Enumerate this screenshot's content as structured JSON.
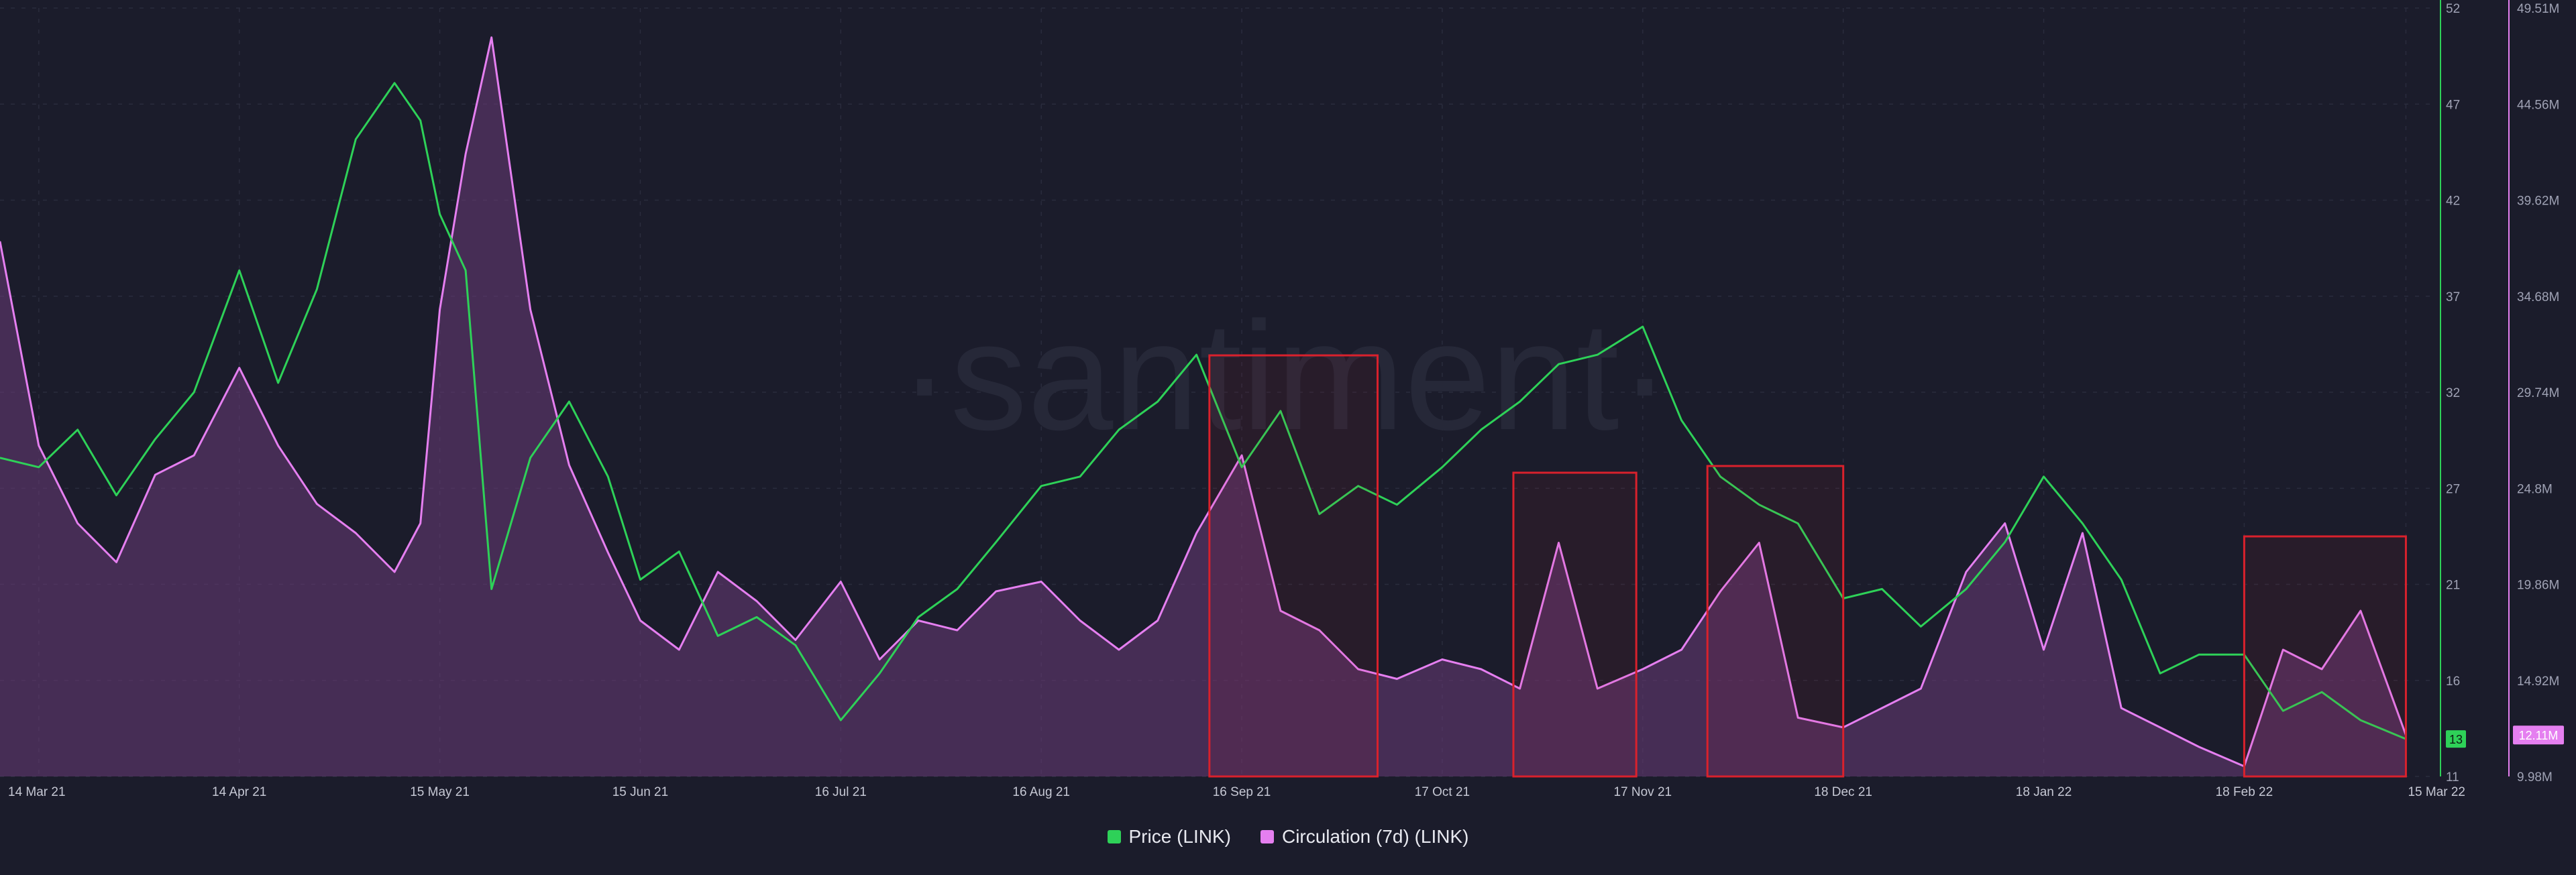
{
  "colors": {
    "background": "#1b1c2b",
    "price": "#2ed158",
    "circulation": "#e57ff0",
    "circulation_fill": "#6a3c78",
    "highlight_box": "#d9212c"
  },
  "watermark": "·santiment·",
  "chart_data": {
    "type": "line",
    "x_ticks": [
      "14 Mar 21",
      "14 Apr 21",
      "15 May 21",
      "15 Jun 21",
      "16 Jul 21",
      "16 Aug 21",
      "16 Sep 21",
      "17 Oct 21",
      "17 Nov 21",
      "18 Dec 21",
      "18 Jan 22",
      "18 Feb 22",
      "15 Mar 22"
    ],
    "y_left": {
      "ticks": [],
      "label": ""
    },
    "y_right_price": {
      "ticks": [
        "52",
        "47",
        "42",
        "37",
        "32",
        "27",
        "21",
        "16",
        "11"
      ],
      "range": [
        11,
        52
      ],
      "current_label": "13"
    },
    "y_right_circulation": {
      "ticks": [
        "49.51M",
        "44.56M",
        "39.62M",
        "34.68M",
        "29.74M",
        "24.8M",
        "19.86M",
        "14.92M",
        "9.98M"
      ],
      "range": [
        9.98,
        49.51
      ],
      "current_label": "12.11M"
    },
    "grid": true,
    "legend_position": "bottom-center",
    "x": [
      "2021-03-08",
      "2021-03-14",
      "2021-03-20",
      "2021-03-26",
      "2021-04-01",
      "2021-04-07",
      "2021-04-14",
      "2021-04-20",
      "2021-04-26",
      "2021-05-02",
      "2021-05-08",
      "2021-05-12",
      "2021-05-15",
      "2021-05-19",
      "2021-05-23",
      "2021-05-29",
      "2021-06-04",
      "2021-06-10",
      "2021-06-15",
      "2021-06-21",
      "2021-06-27",
      "2021-07-03",
      "2021-07-09",
      "2021-07-16",
      "2021-07-22",
      "2021-07-28",
      "2021-08-03",
      "2021-08-09",
      "2021-08-16",
      "2021-08-22",
      "2021-08-28",
      "2021-09-03",
      "2021-09-09",
      "2021-09-16",
      "2021-09-22",
      "2021-09-28",
      "2021-10-04",
      "2021-10-10",
      "2021-10-17",
      "2021-10-23",
      "2021-10-29",
      "2021-11-04",
      "2021-11-10",
      "2021-11-17",
      "2021-11-23",
      "2021-11-29",
      "2021-12-05",
      "2021-12-11",
      "2021-12-18",
      "2021-12-24",
      "2021-12-30",
      "2022-01-06",
      "2022-01-12",
      "2022-01-18",
      "2022-01-24",
      "2022-01-30",
      "2022-02-05",
      "2022-02-11",
      "2022-02-18",
      "2022-02-24",
      "2022-03-02",
      "2022-03-08",
      "2022-03-15"
    ],
    "series": [
      {
        "name": "Price (LINK)",
        "axis": "price",
        "values": [
          28.0,
          27.5,
          29.5,
          26.0,
          29.0,
          31.5,
          38.0,
          32.0,
          37.0,
          45.0,
          48.0,
          46.0,
          41.0,
          38.0,
          21.0,
          28.0,
          31.0,
          27.0,
          21.5,
          23.0,
          18.5,
          19.5,
          18.0,
          14.0,
          16.5,
          19.5,
          21.0,
          23.5,
          26.5,
          27.0,
          29.5,
          31.0,
          33.5,
          27.5,
          30.5,
          25.0,
          26.5,
          25.5,
          27.5,
          29.5,
          31.0,
          33.0,
          33.5,
          35.0,
          30.0,
          27.0,
          25.5,
          24.5,
          20.5,
          21.0,
          19.0,
          21.0,
          23.5,
          27.0,
          24.5,
          21.5,
          16.5,
          17.5,
          17.5,
          14.5,
          15.5,
          14.0,
          13.0
        ]
      },
      {
        "name": "Circulation (7d) (LINK)",
        "axis": "circulation",
        "values": [
          37.5,
          27.0,
          23.0,
          21.0,
          25.5,
          26.5,
          31.0,
          27.0,
          24.0,
          22.5,
          20.5,
          23.0,
          34.0,
          42.0,
          48.0,
          34.0,
          26.0,
          21.5,
          18.0,
          16.5,
          20.5,
          19.0,
          17.0,
          20.0,
          16.0,
          18.0,
          17.5,
          19.5,
          20.0,
          18.0,
          16.5,
          18.0,
          22.5,
          26.5,
          18.5,
          17.5,
          15.5,
          15.0,
          16.0,
          15.5,
          14.5,
          22.0,
          14.5,
          15.5,
          16.5,
          19.5,
          22.0,
          13.0,
          12.5,
          13.5,
          14.5,
          20.5,
          23.0,
          16.5,
          22.5,
          13.5,
          12.5,
          11.5,
          10.5,
          16.5,
          15.5,
          18.5,
          12.11
        ]
      }
    ],
    "highlight_regions": [
      {
        "from": "2021-09-11",
        "to": "2021-10-07"
      },
      {
        "from": "2021-10-28",
        "to": "2021-11-16"
      },
      {
        "from": "2021-11-27",
        "to": "2021-12-18"
      },
      {
        "from": "2022-02-18",
        "to": "2022-03-15"
      }
    ]
  }
}
